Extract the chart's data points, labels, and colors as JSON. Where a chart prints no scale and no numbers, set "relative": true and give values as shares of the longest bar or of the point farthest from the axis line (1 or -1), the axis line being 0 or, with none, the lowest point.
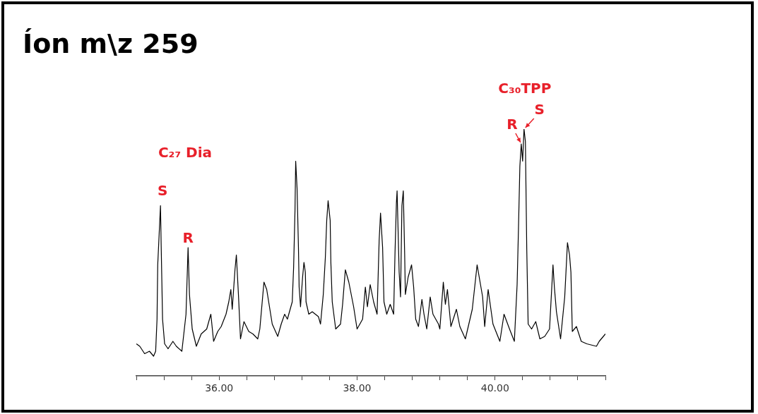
{
  "chart_data": {
    "type": "line",
    "title": "Íon m\\z 259",
    "relative": true,
    "color": "#000000",
    "marker": "none",
    "xlim": [
      34.8,
      41.6
    ],
    "xticks": [
      {
        "value": 34.8,
        "label": null
      },
      {
        "value": 35.2,
        "label": null
      },
      {
        "value": 35.6,
        "label": null
      },
      {
        "value": 36,
        "label": "36.00"
      },
      {
        "value": 36.4,
        "label": null
      },
      {
        "value": 36.8,
        "label": null
      },
      {
        "value": 37.2,
        "label": null
      },
      {
        "value": 37.6,
        "label": null
      },
      {
        "value": 38,
        "label": "38.00"
      },
      {
        "value": 38.4,
        "label": null
      },
      {
        "value": 38.8,
        "label": null
      },
      {
        "value": 39.2,
        "label": null
      },
      {
        "value": 39.6,
        "label": null
      },
      {
        "value": 40,
        "label": "40.00"
      },
      {
        "value": 40.4,
        "label": null
      },
      {
        "value": 40.8,
        "label": null
      },
      {
        "value": 41.2,
        "label": null
      },
      {
        "value": 41.6,
        "label": null
      }
    ],
    "x": [
      34.8,
      34.85,
      34.92,
      34.99,
      35.05,
      35.08,
      35.1,
      35.11,
      35.15,
      35.16,
      35.18,
      35.21,
      35.26,
      35.33,
      35.38,
      35.46,
      35.52,
      35.55,
      35.57,
      35.61,
      35.67,
      35.74,
      35.82,
      35.88,
      35.92,
      35.98,
      36.03,
      36.1,
      36.14,
      36.17,
      36.19,
      36.23,
      36.25,
      36.28,
      36.31,
      36.36,
      36.43,
      36.49,
      36.56,
      36.59,
      36.65,
      36.69,
      36.77,
      36.85,
      36.9,
      36.95,
      36.99,
      37.06,
      37.08,
      37.1,
      37.11,
      37.13,
      37.15,
      37.16,
      37.18,
      37.21,
      37.23,
      37.25,
      37.26,
      37.3,
      37.35,
      37.44,
      37.47,
      37.51,
      37.54,
      37.56,
      37.58,
      37.61,
      37.62,
      37.64,
      37.69,
      37.76,
      37.79,
      37.83,
      37.88,
      37.95,
      38.0,
      38.08,
      38.12,
      38.15,
      38.19,
      38.24,
      38.29,
      38.32,
      38.34,
      38.37,
      38.39,
      38.43,
      38.48,
      38.53,
      38.55,
      38.57,
      38.58,
      38.61,
      38.63,
      38.65,
      38.67,
      38.69,
      38.7,
      38.74,
      38.79,
      38.82,
      38.85,
      38.89,
      38.94,
      38.97,
      39.01,
      39.06,
      39.1,
      39.18,
      39.2,
      39.25,
      39.28,
      39.31,
      39.36,
      39.44,
      39.49,
      39.57,
      39.67,
      39.74,
      39.82,
      39.85,
      39.9,
      39.97,
      40.07,
      40.13,
      40.21,
      40.28,
      40.32,
      40.34,
      40.36,
      40.38,
      40.4,
      40.42,
      40.44,
      40.46,
      40.48,
      40.53,
      40.59,
      40.65,
      40.72,
      40.79,
      40.84,
      40.86,
      40.89,
      40.95,
      41.01,
      41.05,
      41.08,
      41.1,
      41.12,
      41.18,
      41.25,
      41.33,
      41.47,
      41.51,
      41.6
    ],
    "values": [
      0.13,
      0.12,
      0.09,
      0.1,
      0.08,
      0.1,
      0.23,
      0.45,
      0.69,
      0.53,
      0.23,
      0.13,
      0.11,
      0.14,
      0.12,
      0.1,
      0.25,
      0.52,
      0.33,
      0.19,
      0.12,
      0.17,
      0.19,
      0.25,
      0.14,
      0.18,
      0.2,
      0.25,
      0.3,
      0.35,
      0.27,
      0.43,
      0.49,
      0.33,
      0.15,
      0.22,
      0.18,
      0.17,
      0.15,
      0.19,
      0.38,
      0.35,
      0.21,
      0.16,
      0.21,
      0.25,
      0.23,
      0.3,
      0.44,
      0.67,
      0.87,
      0.76,
      0.52,
      0.36,
      0.28,
      0.4,
      0.46,
      0.42,
      0.3,
      0.25,
      0.26,
      0.24,
      0.21,
      0.33,
      0.48,
      0.63,
      0.71,
      0.63,
      0.46,
      0.3,
      0.19,
      0.21,
      0.29,
      0.43,
      0.38,
      0.28,
      0.19,
      0.23,
      0.36,
      0.28,
      0.37,
      0.3,
      0.25,
      0.55,
      0.66,
      0.52,
      0.3,
      0.25,
      0.29,
      0.25,
      0.5,
      0.7,
      0.75,
      0.42,
      0.32,
      0.69,
      0.75,
      0.49,
      0.33,
      0.4,
      0.45,
      0.36,
      0.23,
      0.2,
      0.31,
      0.25,
      0.19,
      0.32,
      0.25,
      0.21,
      0.19,
      0.38,
      0.29,
      0.35,
      0.2,
      0.27,
      0.2,
      0.15,
      0.27,
      0.45,
      0.32,
      0.2,
      0.35,
      0.21,
      0.14,
      0.25,
      0.19,
      0.14,
      0.37,
      0.6,
      0.85,
      0.94,
      0.87,
      1,
      0.95,
      0.51,
      0.21,
      0.19,
      0.22,
      0.15,
      0.16,
      0.19,
      0.45,
      0.36,
      0.26,
      0.15,
      0.32,
      0.54,
      0.49,
      0.42,
      0.18,
      0.2,
      0.14,
      0.13,
      0.12,
      0.14,
      0.17
    ],
    "annotations": [
      "C₂₇ Dia",
      {
        "text": "S",
        "x": 35.15,
        "y": 0.69
      },
      {
        "text": "R",
        "x": 35.55,
        "y": 0.52
      },
      {
        "text": "C₃₀TPP",
        "x": 40.42,
        "y": 1
      },
      {
        "text": "R",
        "x": 40.38,
        "y": 0.94
      },
      {
        "text": "S",
        "x": 40.42,
        "y": 1
      }
    ]
  }
}
